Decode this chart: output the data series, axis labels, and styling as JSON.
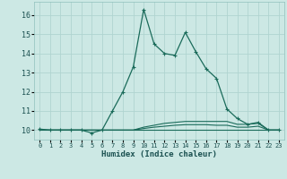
{
  "xlabel": "Humidex (Indice chaleur)",
  "background_color": "#cce8e4",
  "grid_color": "#b0d4d0",
  "line_color": "#1a6b5a",
  "xlim": [
    -0.5,
    23.5
  ],
  "ylim": [
    9.5,
    16.7
  ],
  "yticks": [
    10,
    11,
    12,
    13,
    14,
    15,
    16
  ],
  "xticks": [
    0,
    1,
    2,
    3,
    4,
    5,
    6,
    7,
    8,
    9,
    10,
    11,
    12,
    13,
    14,
    15,
    16,
    17,
    18,
    19,
    20,
    21,
    22,
    23
  ],
  "series": [
    {
      "x": [
        0,
        1,
        2,
        3,
        4,
        5,
        6,
        7,
        8,
        9,
        10,
        11,
        12,
        13,
        14,
        15,
        16,
        17,
        18,
        19,
        20,
        21,
        22,
        23
      ],
      "y": [
        10.05,
        10.0,
        10.0,
        10.0,
        10.0,
        9.85,
        10.0,
        11.0,
        12.0,
        13.3,
        16.3,
        14.5,
        14.0,
        13.9,
        15.1,
        14.1,
        13.2,
        12.7,
        11.1,
        10.6,
        10.3,
        10.4,
        10.0,
        10.0
      ],
      "marker": "+",
      "markersize": 3.5,
      "linewidth": 0.9
    },
    {
      "x": [
        0,
        1,
        2,
        3,
        4,
        5,
        6,
        7,
        8,
        9,
        10,
        11,
        12,
        13,
        14,
        15,
        16,
        17,
        18,
        19,
        20,
        21,
        22,
        23
      ],
      "y": [
        10.0,
        10.0,
        10.0,
        10.0,
        10.0,
        10.0,
        10.0,
        10.0,
        10.0,
        10.0,
        10.15,
        10.25,
        10.35,
        10.4,
        10.45,
        10.45,
        10.45,
        10.45,
        10.45,
        10.3,
        10.3,
        10.35,
        10.0,
        10.0
      ],
      "marker": null,
      "linewidth": 0.8
    },
    {
      "x": [
        0,
        1,
        2,
        3,
        4,
        5,
        6,
        7,
        8,
        9,
        10,
        11,
        12,
        13,
        14,
        15,
        16,
        17,
        18,
        19,
        20,
        21,
        22,
        23
      ],
      "y": [
        10.0,
        10.0,
        10.0,
        10.0,
        10.0,
        10.0,
        10.0,
        10.0,
        10.0,
        10.0,
        10.08,
        10.15,
        10.2,
        10.25,
        10.28,
        10.28,
        10.28,
        10.25,
        10.25,
        10.15,
        10.15,
        10.2,
        10.0,
        10.0
      ],
      "marker": null,
      "linewidth": 0.8
    },
    {
      "x": [
        0,
        23
      ],
      "y": [
        10.0,
        10.0
      ],
      "marker": null,
      "linewidth": 0.8
    }
  ]
}
